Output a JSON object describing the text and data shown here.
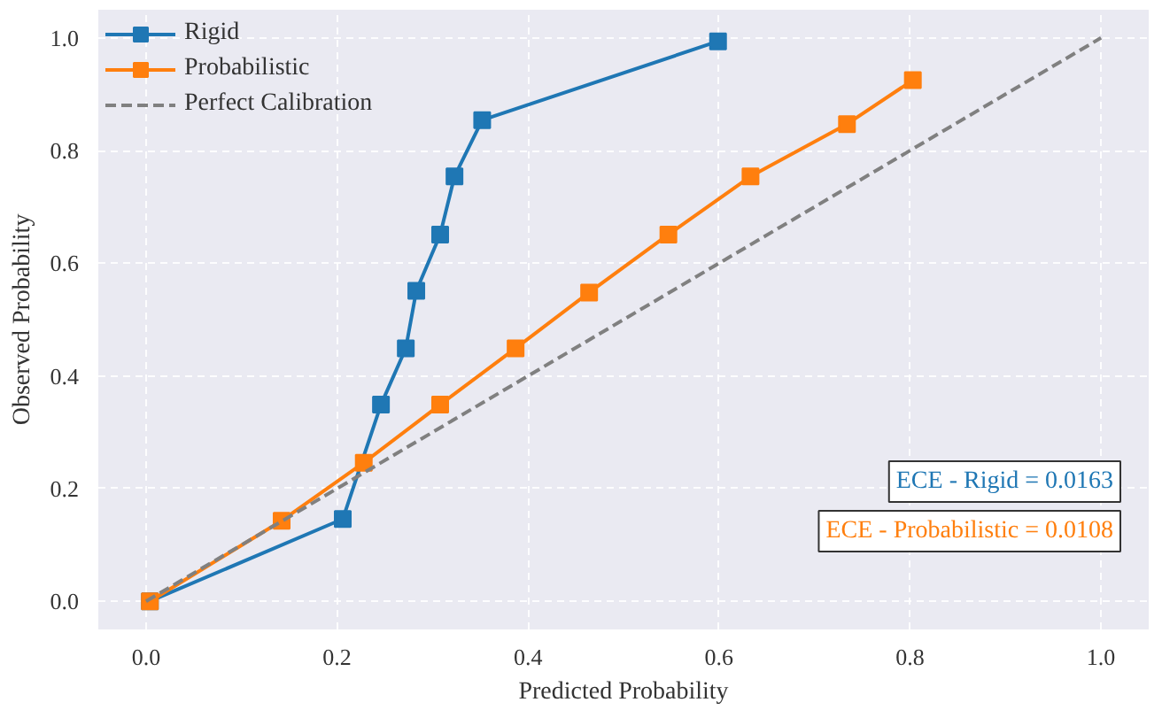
{
  "chart_data": {
    "type": "line",
    "xlabel": "Predicted Probability",
    "ylabel": "Observed Probability",
    "xlim": [
      -0.05,
      1.05
    ],
    "ylim": [
      -0.05,
      1.05
    ],
    "xticks": [
      {
        "value": 0,
        "label": "0.0"
      },
      {
        "value": 0.2,
        "label": "0.2"
      },
      {
        "value": 0.4,
        "label": "0.4"
      },
      {
        "value": 0.6,
        "label": "0.6"
      },
      {
        "value": 0.8,
        "label": "0.8"
      },
      {
        "value": 1,
        "label": "1.0"
      }
    ],
    "yticks": [
      {
        "value": 0,
        "label": "0.0"
      },
      {
        "value": 0.2,
        "label": "0.2"
      },
      {
        "value": 0.4,
        "label": "0.4"
      },
      {
        "value": 0.6,
        "label": "0.6"
      },
      {
        "value": 0.8,
        "label": "0.8"
      },
      {
        "value": 1,
        "label": "1.0"
      }
    ],
    "grid": true,
    "legend": "top left",
    "series": [
      {
        "name": "Rigid",
        "color": "#1f77b4",
        "marker": "square",
        "line_style": "solid",
        "x": [
          0.004,
          0.206,
          0.246,
          0.272,
          0.283,
          0.308,
          0.323,
          0.352,
          0.599
        ],
        "values": [
          0.0,
          0.146,
          0.349,
          0.449,
          0.551,
          0.651,
          0.754,
          0.854,
          0.994
        ]
      },
      {
        "name": "Probabilistic",
        "color": "#ff7f0e",
        "marker": "square",
        "line_style": "solid",
        "x": [
          0.004,
          0.142,
          0.228,
          0.308,
          0.387,
          0.464,
          0.547,
          0.633,
          0.734,
          0.803
        ],
        "values": [
          0.0,
          0.143,
          0.246,
          0.349,
          0.449,
          0.548,
          0.651,
          0.754,
          0.847,
          0.925
        ]
      },
      {
        "name": "Perfect Calibration",
        "color": "#808080",
        "marker": "none",
        "line_style": "dashed",
        "x": [
          0,
          1
        ],
        "values": [
          0,
          1
        ]
      }
    ],
    "annotations": [
      "ECE - Rigid = 0.0163",
      "ECE - Probabilistic = 0.0108"
    ]
  }
}
